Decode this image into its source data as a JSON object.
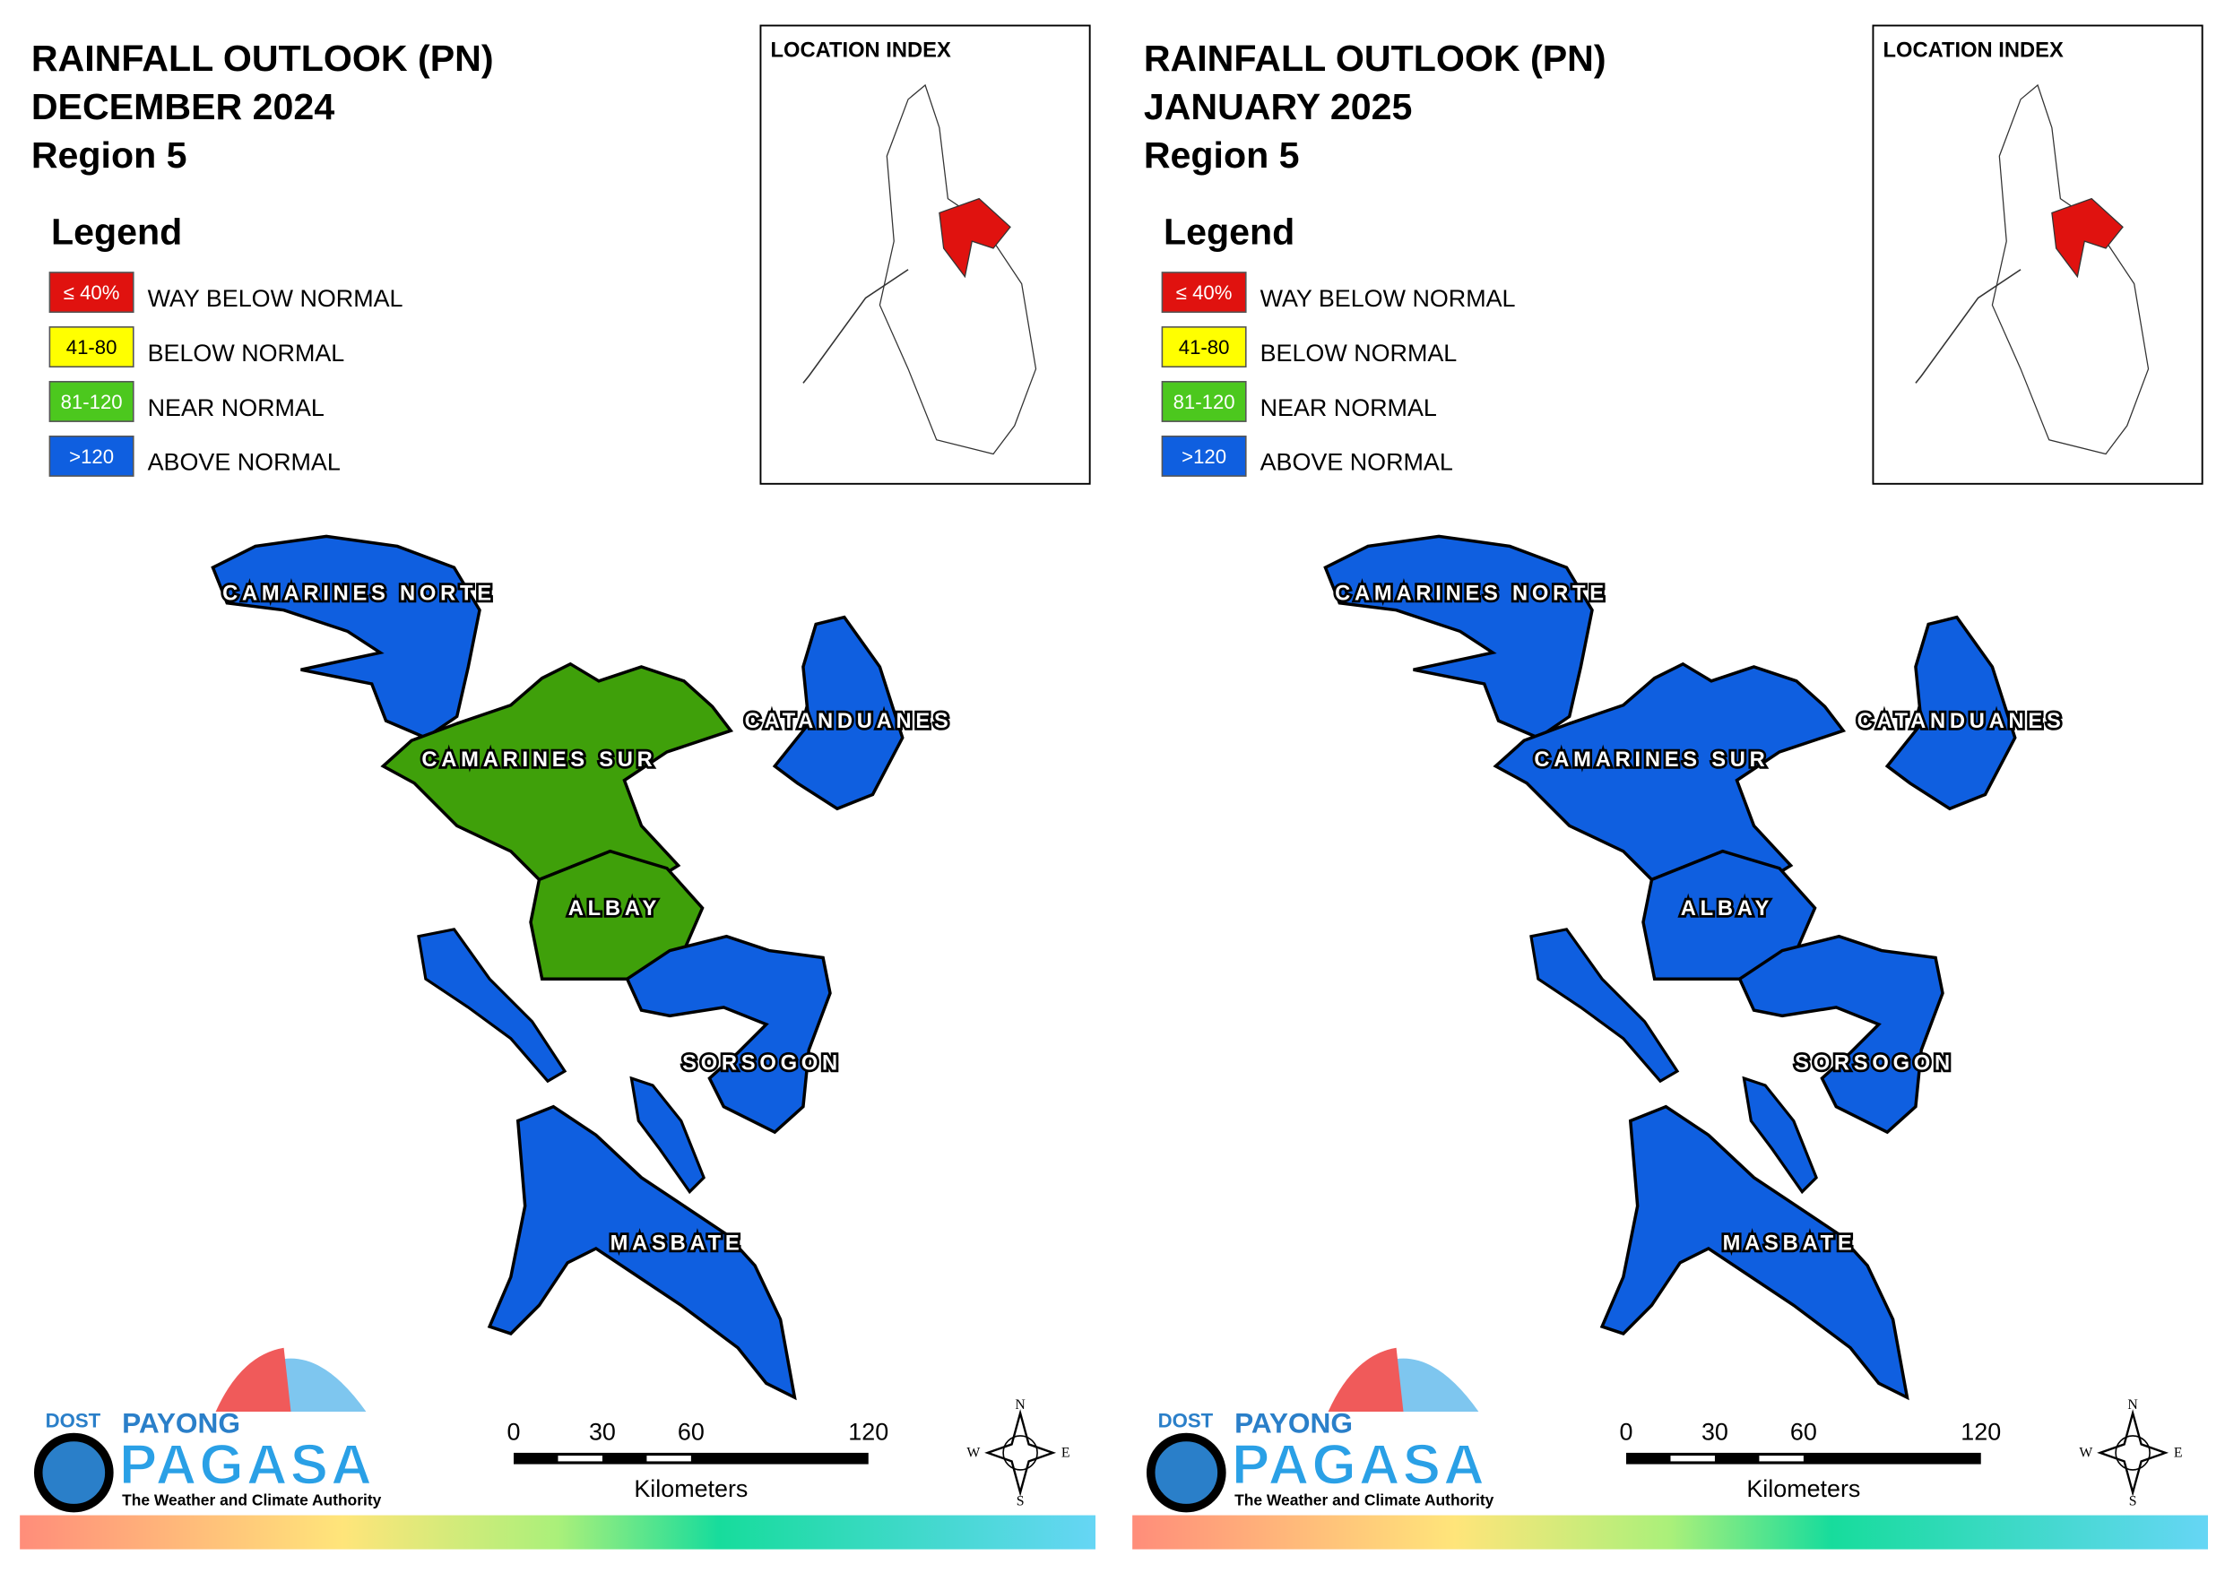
{
  "legend": {
    "title": "Legend",
    "items": [
      {
        "range": "≤ 40%",
        "label": "WAY BELOW NORMAL",
        "color": "#e0120f"
      },
      {
        "range": "41-80",
        "label": "BELOW NORMAL",
        "color": "#ffff00"
      },
      {
        "range": "81-120",
        "label": "NEAR NORMAL",
        "color": "#4cc81e"
      },
      {
        "range": ">120",
        "label": "ABOVE NORMAL",
        "color": "#0f5fe0"
      }
    ]
  },
  "location_index": "LOCATION INDEX",
  "scale": {
    "ticks": [
      0,
      30,
      60,
      120
    ],
    "unit": "Kilometers"
  },
  "compass": [
    "N",
    "W",
    "E",
    "S"
  ],
  "logo": {
    "agency": "DOST",
    "brand_top": "PAYONG",
    "brand": "PAGASA",
    "tagline": "The Weather and Climate Authority"
  },
  "panels": [
    {
      "title": [
        "RAINFALL OUTLOOK (PN)",
        "DECEMBER 2024",
        "Region 5"
      ],
      "provinces": [
        {
          "name": "CAMARINES NORTE",
          "color": "#0f5fe0"
        },
        {
          "name": "CAMARINES SUR",
          "color": "#3fa00a"
        },
        {
          "name": "CATANDUANES",
          "color": "#0f5fe0"
        },
        {
          "name": "ALBAY",
          "color": "#3fa00a"
        },
        {
          "name": "SORSOGON",
          "color": "#0f5fe0"
        },
        {
          "name": "MASBATE",
          "color": "#0f5fe0"
        }
      ]
    },
    {
      "title": [
        "RAINFALL OUTLOOK (PN)",
        "JANUARY 2025",
        "Region 5"
      ],
      "provinces": [
        {
          "name": "CAMARINES NORTE",
          "color": "#0f5fe0"
        },
        {
          "name": "CAMARINES SUR",
          "color": "#0f5fe0"
        },
        {
          "name": "CATANDUANES",
          "color": "#0f5fe0"
        },
        {
          "name": "ALBAY",
          "color": "#0f5fe0"
        },
        {
          "name": "SORSOGON",
          "color": "#0f5fe0"
        },
        {
          "name": "MASBATE",
          "color": "#0f5fe0"
        }
      ]
    }
  ]
}
